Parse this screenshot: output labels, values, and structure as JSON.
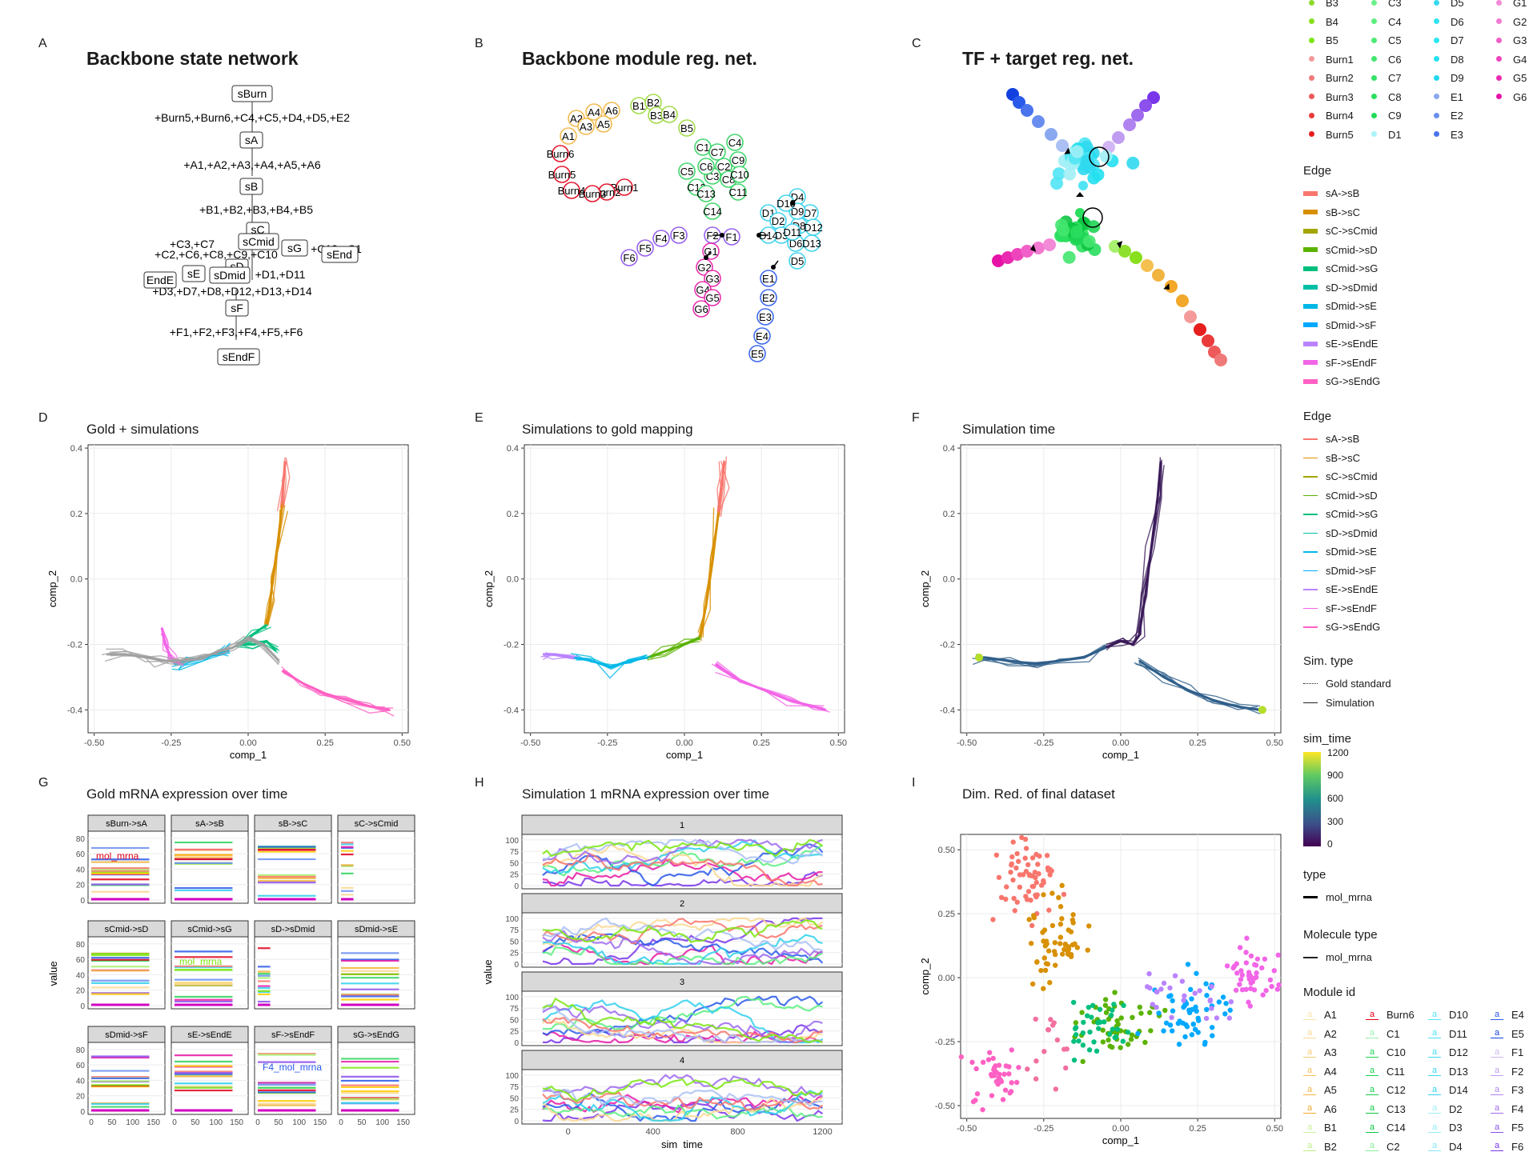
{
  "panel_labels": [
    "A",
    "B",
    "C",
    "D",
    "E",
    "F",
    "G",
    "H",
    "I"
  ],
  "titles": {
    "A": "Backbone state network",
    "B": "Backbone module reg. net.",
    "C": "TF + target reg. net.",
    "D": "Gold + simulations",
    "E": "Simulations to gold mapping",
    "F": "Simulation time",
    "G": "Gold mRNA expression over time",
    "H": "Simulation 1 mRNA expression over time",
    "I": "Dim. Red. of final dataset"
  },
  "state_network": {
    "nodes": [
      "sBurn",
      "sA",
      "sB",
      "sC",
      "sCmid",
      "sD",
      "sE",
      "sG",
      "sDmid",
      "sEnd",
      "EndE",
      "sF",
      "sEndF"
    ],
    "edge_labels": [
      "+Burn5,+Burn6,+C4,+C5,+D4,+D5,+E2",
      "+A1,+A2,+A3,+A4,+A5,+A6",
      "+B1,+B2,+B3,+B4,+B5",
      "+C3,+C7",
      "+C2,+C6,+C8,+C9,+C10",
      "+C13,+C1",
      "+D1,+D11",
      "+D3,+D7,+D8,+D12,+D13,+D14",
      "+F1,+F2,+F3,+F4,+F5,+F6"
    ]
  },
  "module_network_labels": [
    "A1",
    "A2",
    "A3",
    "A4",
    "A5",
    "A6",
    "B1",
    "B2",
    "B3",
    "B4",
    "B5",
    "Burn1",
    "Burn2",
    "Burn3",
    "Burn4",
    "Burn5",
    "Burn6",
    "C1",
    "C2",
    "C3",
    "C4",
    "C5",
    "C6",
    "C7",
    "C8",
    "C9",
    "C10",
    "C11",
    "C12",
    "C13",
    "C14",
    "D1",
    "D2",
    "D3",
    "D4",
    "D5",
    "D6",
    "D7",
    "D8",
    "D9",
    "D10",
    "D11",
    "D12",
    "D13",
    "D14",
    "E1",
    "E2",
    "E3",
    "E4",
    "E5",
    "F1",
    "F2",
    "F3",
    "F4",
    "F5",
    "F6",
    "G1",
    "G2",
    "G3",
    "G4",
    "G5",
    "G6"
  ],
  "legend_top_modules": [
    {
      "label": "B3",
      "color": "#8ed92e"
    },
    {
      "label": "C3",
      "color": "#6cf08a"
    },
    {
      "label": "D5",
      "color": "#34d9f0"
    },
    {
      "label": "G1",
      "color": "#f38ad8"
    },
    {
      "label": "B4",
      "color": "#88e01c"
    },
    {
      "label": "C4",
      "color": "#5cee80"
    },
    {
      "label": "D6",
      "color": "#2ee3f0"
    },
    {
      "label": "G2",
      "color": "#f27ad2"
    },
    {
      "label": "B5",
      "color": "#7ce610"
    },
    {
      "label": "C5",
      "color": "#4eea76"
    },
    {
      "label": "D7",
      "color": "#28e8f2"
    },
    {
      "label": "G3",
      "color": "#f060c8"
    },
    {
      "label": "Burn1",
      "color": "#f49a9a"
    },
    {
      "label": "C6",
      "color": "#42e66e"
    },
    {
      "label": "D8",
      "color": "#24e0f0"
    },
    {
      "label": "G4",
      "color": "#ee44bc"
    },
    {
      "label": "Burn2",
      "color": "#f07a7a"
    },
    {
      "label": "C7",
      "color": "#36e266"
    },
    {
      "label": "D9",
      "color": "#20d8ef"
    },
    {
      "label": "G5",
      "color": "#ea2ab0"
    },
    {
      "label": "Burn3",
      "color": "#ee5a5a"
    },
    {
      "label": "C8",
      "color": "#2ade5e"
    },
    {
      "label": "E1",
      "color": "#8aa8f0"
    },
    {
      "label": "G6",
      "color": "#e612a6"
    },
    {
      "label": "Burn4",
      "color": "#ea3a3a"
    },
    {
      "label": "C9",
      "color": "#22da58"
    },
    {
      "label": "E2",
      "color": "#6a8ef0"
    },
    {
      "label": "",
      "color": "#ffffff"
    },
    {
      "label": "Burn5",
      "color": "#e61e1e"
    },
    {
      "label": "D1",
      "color": "#aaf4f8"
    },
    {
      "label": "E3",
      "color": "#4a74ee"
    },
    {
      "label": "",
      "color": "#ffffff"
    }
  ],
  "legend_edge": {
    "title": "Edge",
    "items": [
      {
        "label": "sA->sB",
        "color": "#f8766d"
      },
      {
        "label": "sB->sC",
        "color": "#d89000"
      },
      {
        "label": "sC->sCmid",
        "color": "#a3a500"
      },
      {
        "label": "sCmid->sD",
        "color": "#5bb300"
      },
      {
        "label": "sCmid->sG",
        "color": "#00bf7d"
      },
      {
        "label": "sD->sDmid",
        "color": "#00bfa5"
      },
      {
        "label": "sDmid->sE",
        "color": "#00b8e7"
      },
      {
        "label": "sDmid->sF",
        "color": "#00a9ff"
      },
      {
        "label": "sE->sEndE",
        "color": "#b983ff"
      },
      {
        "label": "sF->sEndF",
        "color": "#f265e7"
      },
      {
        "label": "sG->sEndG",
        "color": "#ff61c3"
      }
    ]
  },
  "legend_simtype": {
    "title": "Sim. type",
    "items": [
      "Gold standard",
      "Simulation"
    ]
  },
  "legend_simtime": {
    "title": "sim_time",
    "ticks": [
      "1200",
      "900",
      "600",
      "300",
      "0"
    ]
  },
  "legend_type": {
    "title": "type",
    "items": [
      "mol_mrna"
    ]
  },
  "legend_moltype": {
    "title": "Molecule type",
    "items": [
      "mol_mrna"
    ]
  },
  "legend_module": {
    "title": "Module id",
    "items": [
      {
        "label": "A1",
        "color": "#fbe3a8"
      },
      {
        "label": "Burn6",
        "color": "#e0001a"
      },
      {
        "label": "D10",
        "color": "#50e4f4"
      },
      {
        "label": "E4",
        "color": "#2a5aea"
      },
      {
        "label": "A2",
        "color": "#fad890"
      },
      {
        "label": "C1",
        "color": "#9af0ae"
      },
      {
        "label": "D11",
        "color": "#48e0f2"
      },
      {
        "label": "E5",
        "color": "#1240e0"
      },
      {
        "label": "A3",
        "color": "#f8cc74"
      },
      {
        "label": "C10",
        "color": "#1ed454"
      },
      {
        "label": "D12",
        "color": "#40dcf0"
      },
      {
        "label": "F1",
        "color": "#d2b6f4"
      },
      {
        "label": "A4",
        "color": "#f6c05a"
      },
      {
        "label": "C11",
        "color": "#18d04e"
      },
      {
        "label": "D13",
        "color": "#38d8ee"
      },
      {
        "label": "F2",
        "color": "#c19df2"
      },
      {
        "label": "A5",
        "color": "#f4b442"
      },
      {
        "label": "C12",
        "color": "#14cc48"
      },
      {
        "label": "D14",
        "color": "#30d4ec"
      },
      {
        "label": "F3",
        "color": "#b084f0"
      },
      {
        "label": "A6",
        "color": "#f2a82a"
      },
      {
        "label": "C13",
        "color": "#10c844"
      },
      {
        "label": "D2",
        "color": "#a0f0f6"
      },
      {
        "label": "F4",
        "color": "#9e6aee"
      },
      {
        "label": "B1",
        "color": "#cdf29a"
      },
      {
        "label": "C14",
        "color": "#0cc440"
      },
      {
        "label": "D3",
        "color": "#92ecf6"
      },
      {
        "label": "F5",
        "color": "#8c50ec"
      },
      {
        "label": "B2",
        "color": "#bdf080"
      },
      {
        "label": "C2",
        "color": "#84ee9c"
      },
      {
        "label": "D4",
        "color": "#84e8f4"
      },
      {
        "label": "F6",
        "color": "#7a36ea"
      }
    ]
  },
  "chart_data": [
    {
      "panel": "D",
      "type": "line",
      "title": "Gold + simulations",
      "xlabel": "comp_1",
      "ylabel": "comp_2",
      "xlim": [
        -0.52,
        0.52
      ],
      "ylim": [
        -0.47,
        0.41
      ],
      "xticks": [
        "-0.50",
        "-0.25",
        "0.00",
        "0.25",
        "0.50"
      ],
      "yticks": [
        "0.4",
        "0.2",
        "0.0",
        "-0.2",
        "-0.4"
      ],
      "series": [
        {
          "color": "#f8766d",
          "x": [
            0.12,
            0.115,
            0.11
          ],
          "y": [
            0.36,
            0.3,
            0.22
          ]
        },
        {
          "color": "#d89000",
          "x": [
            0.11,
            0.095,
            0.08,
            0.07,
            0.06
          ],
          "y": [
            0.22,
            0.1,
            0.0,
            -0.08,
            -0.14
          ]
        },
        {
          "color": "#00bf7d",
          "x": [
            0.06,
            0.03,
            -0.03,
            0.02,
            0.06,
            0.09
          ],
          "y": [
            -0.14,
            -0.16,
            -0.2,
            -0.2,
            -0.19,
            -0.22
          ]
        },
        {
          "color": "#ff61c3",
          "x": [
            0.11,
            0.18,
            0.25,
            0.32,
            0.4,
            0.46
          ],
          "y": [
            -0.28,
            -0.32,
            -0.35,
            -0.37,
            -0.39,
            -0.4
          ]
        },
        {
          "color": "#00b8e7",
          "x": [
            -0.06,
            -0.1,
            -0.15,
            -0.2,
            -0.24
          ],
          "y": [
            -0.22,
            -0.23,
            -0.24,
            -0.25,
            -0.26
          ]
        },
        {
          "color": "#f265e7",
          "x": [
            -0.22,
            -0.25,
            -0.27,
            -0.28
          ],
          "y": [
            -0.26,
            -0.24,
            -0.2,
            -0.15
          ]
        },
        {
          "color": "#a0a0a0",
          "x": [
            -0.46,
            -0.4,
            -0.33,
            -0.27,
            -0.22,
            -0.15,
            -0.09,
            -0.05,
            0.0,
            0.05,
            0.1
          ],
          "y": [
            -0.23,
            -0.23,
            -0.24,
            -0.25,
            -0.25,
            -0.24,
            -0.22,
            -0.21,
            -0.18,
            -0.2,
            -0.25
          ]
        }
      ]
    },
    {
      "panel": "E",
      "type": "line",
      "title": "Simulations to gold mapping",
      "xlabel": "comp_1",
      "ylabel": "comp_2",
      "xlim": [
        -0.52,
        0.52
      ],
      "ylim": [
        -0.47,
        0.41
      ],
      "xticks": [
        "-0.50",
        "-0.25",
        "0.00",
        "0.25",
        "0.50"
      ],
      "yticks": [
        "0.4",
        "0.2",
        "0.0",
        "-0.2",
        "-0.4"
      ],
      "series": [
        {
          "color": "#f8766d",
          "x": [
            0.13,
            0.12,
            0.11
          ],
          "y": [
            0.36,
            0.28,
            0.2
          ]
        },
        {
          "color": "#d89000",
          "x": [
            0.11,
            0.09,
            0.07,
            0.05
          ],
          "y": [
            0.2,
            0.05,
            -0.08,
            -0.18
          ]
        },
        {
          "color": "#5bb300",
          "x": [
            0.05,
            0.0,
            -0.06,
            -0.12
          ],
          "y": [
            -0.18,
            -0.2,
            -0.22,
            -0.24
          ]
        },
        {
          "color": "#00b8e7",
          "x": [
            -0.12,
            -0.18,
            -0.24,
            -0.3,
            -0.36
          ],
          "y": [
            -0.24,
            -0.25,
            -0.27,
            -0.25,
            -0.24
          ]
        },
        {
          "color": "#b983ff",
          "x": [
            -0.36,
            -0.42,
            -0.46
          ],
          "y": [
            -0.24,
            -0.23,
            -0.23
          ]
        },
        {
          "color": "#f265e7",
          "x": [
            0.1,
            0.18,
            0.26,
            0.34,
            0.42,
            0.46
          ],
          "y": [
            -0.26,
            -0.31,
            -0.34,
            -0.37,
            -0.39,
            -0.4
          ]
        }
      ]
    },
    {
      "panel": "F",
      "type": "line",
      "title": "Simulation time",
      "xlabel": "comp_1",
      "ylabel": "comp_2",
      "xlim": [
        -0.52,
        0.52
      ],
      "ylim": [
        -0.47,
        0.41
      ],
      "xticks": [
        "-0.50",
        "-0.25",
        "0.00",
        "0.25",
        "0.50"
      ],
      "yticks": [
        "0.4",
        "0.2",
        "0.0",
        "-0.2",
        "-0.4"
      ],
      "series": [
        {
          "color": "#3b1b5a",
          "x": [
            0.13,
            0.12,
            0.1,
            0.08,
            0.06,
            0.04,
            0.0,
            -0.05
          ],
          "y": [
            0.36,
            0.25,
            0.1,
            -0.05,
            -0.17,
            -0.2,
            -0.19,
            -0.21
          ]
        },
        {
          "color": "#2f5f8a",
          "x": [
            -0.05,
            -0.12,
            -0.2,
            -0.28,
            -0.36,
            -0.44,
            -0.47
          ],
          "y": [
            -0.21,
            -0.24,
            -0.25,
            -0.26,
            -0.25,
            -0.24,
            -0.24
          ]
        },
        {
          "color": "#2f5f8a",
          "x": [
            0.06,
            0.14,
            0.22,
            0.3,
            0.38,
            0.45
          ],
          "y": [
            -0.25,
            -0.3,
            -0.34,
            -0.37,
            -0.39,
            -0.4
          ]
        }
      ]
    },
    {
      "panel": "G",
      "type": "line",
      "title": "Gold mRNA expression over time",
      "xlabel": "sim_time",
      "ylabel": "value",
      "facets": [
        "sBurn->sA",
        "sA->sB",
        "sB->sC",
        "sC->sCmid",
        "sCmid->sD",
        "sCmid->sG",
        "sD->sDmid",
        "sDmid->sE",
        "sDmid->sF",
        "sE->sEndE",
        "sF->sEndF",
        "sG->sEndG"
      ],
      "yticks": [
        "0",
        "20",
        "40",
        "60",
        "80"
      ],
      "xticks": [
        "0",
        "50",
        "100",
        "150"
      ],
      "facet_labels": [
        "mol_mrna",
        "mol_mrna",
        "F4_mol_mrna"
      ]
    },
    {
      "panel": "H",
      "type": "line",
      "title": "Simulation 1 mRNA expression over time",
      "xlabel": "sim_time",
      "ylabel": "value",
      "facets": [
        "1",
        "2",
        "3",
        "4"
      ],
      "yticks": [
        "0",
        "25",
        "50",
        "75",
        "100"
      ],
      "xticks": [
        "0",
        "400",
        "800",
        "1200"
      ]
    },
    {
      "panel": "I",
      "type": "scatter",
      "title": "Dim. Red. of final dataset",
      "xlabel": "comp_1",
      "ylabel": "comp_2",
      "xlim": [
        -0.52,
        0.52
      ],
      "ylim": [
        -0.55,
        0.56
      ],
      "xticks": [
        "-0.50",
        "-0.25",
        "0.00",
        "0.25",
        "0.50"
      ],
      "yticks": [
        "0.50",
        "0.25",
        "0.00",
        "-0.25",
        "-0.50"
      ],
      "groups": [
        {
          "color": "#f8766d",
          "cx": -0.3,
          "cy": 0.38,
          "sx": 0.05,
          "sy": 0.08,
          "n": 60
        },
        {
          "color": "#d89000",
          "cx": -0.22,
          "cy": 0.13,
          "sx": 0.05,
          "sy": 0.08,
          "n": 55
        },
        {
          "color": "#5bb300",
          "cx": -0.02,
          "cy": -0.17,
          "sx": 0.07,
          "sy": 0.06,
          "n": 50
        },
        {
          "color": "#00bf7d",
          "cx": -0.1,
          "cy": -0.2,
          "sx": 0.05,
          "sy": 0.06,
          "n": 35
        },
        {
          "color": "#00a9ff",
          "cx": 0.22,
          "cy": -0.14,
          "sx": 0.06,
          "sy": 0.07,
          "n": 55
        },
        {
          "color": "#b983ff",
          "cx": 0.2,
          "cy": -0.08,
          "sx": 0.08,
          "sy": 0.06,
          "n": 25
        },
        {
          "color": "#f265e7",
          "cx": 0.42,
          "cy": 0.0,
          "sx": 0.04,
          "sy": 0.06,
          "n": 45
        },
        {
          "color": "#ff61c3",
          "cx": -0.4,
          "cy": -0.38,
          "sx": 0.04,
          "sy": 0.06,
          "n": 40
        },
        {
          "color": "#f26f9f",
          "cx": -0.25,
          "cy": -0.3,
          "sx": 0.04,
          "sy": 0.08,
          "n": 15
        }
      ]
    }
  ]
}
